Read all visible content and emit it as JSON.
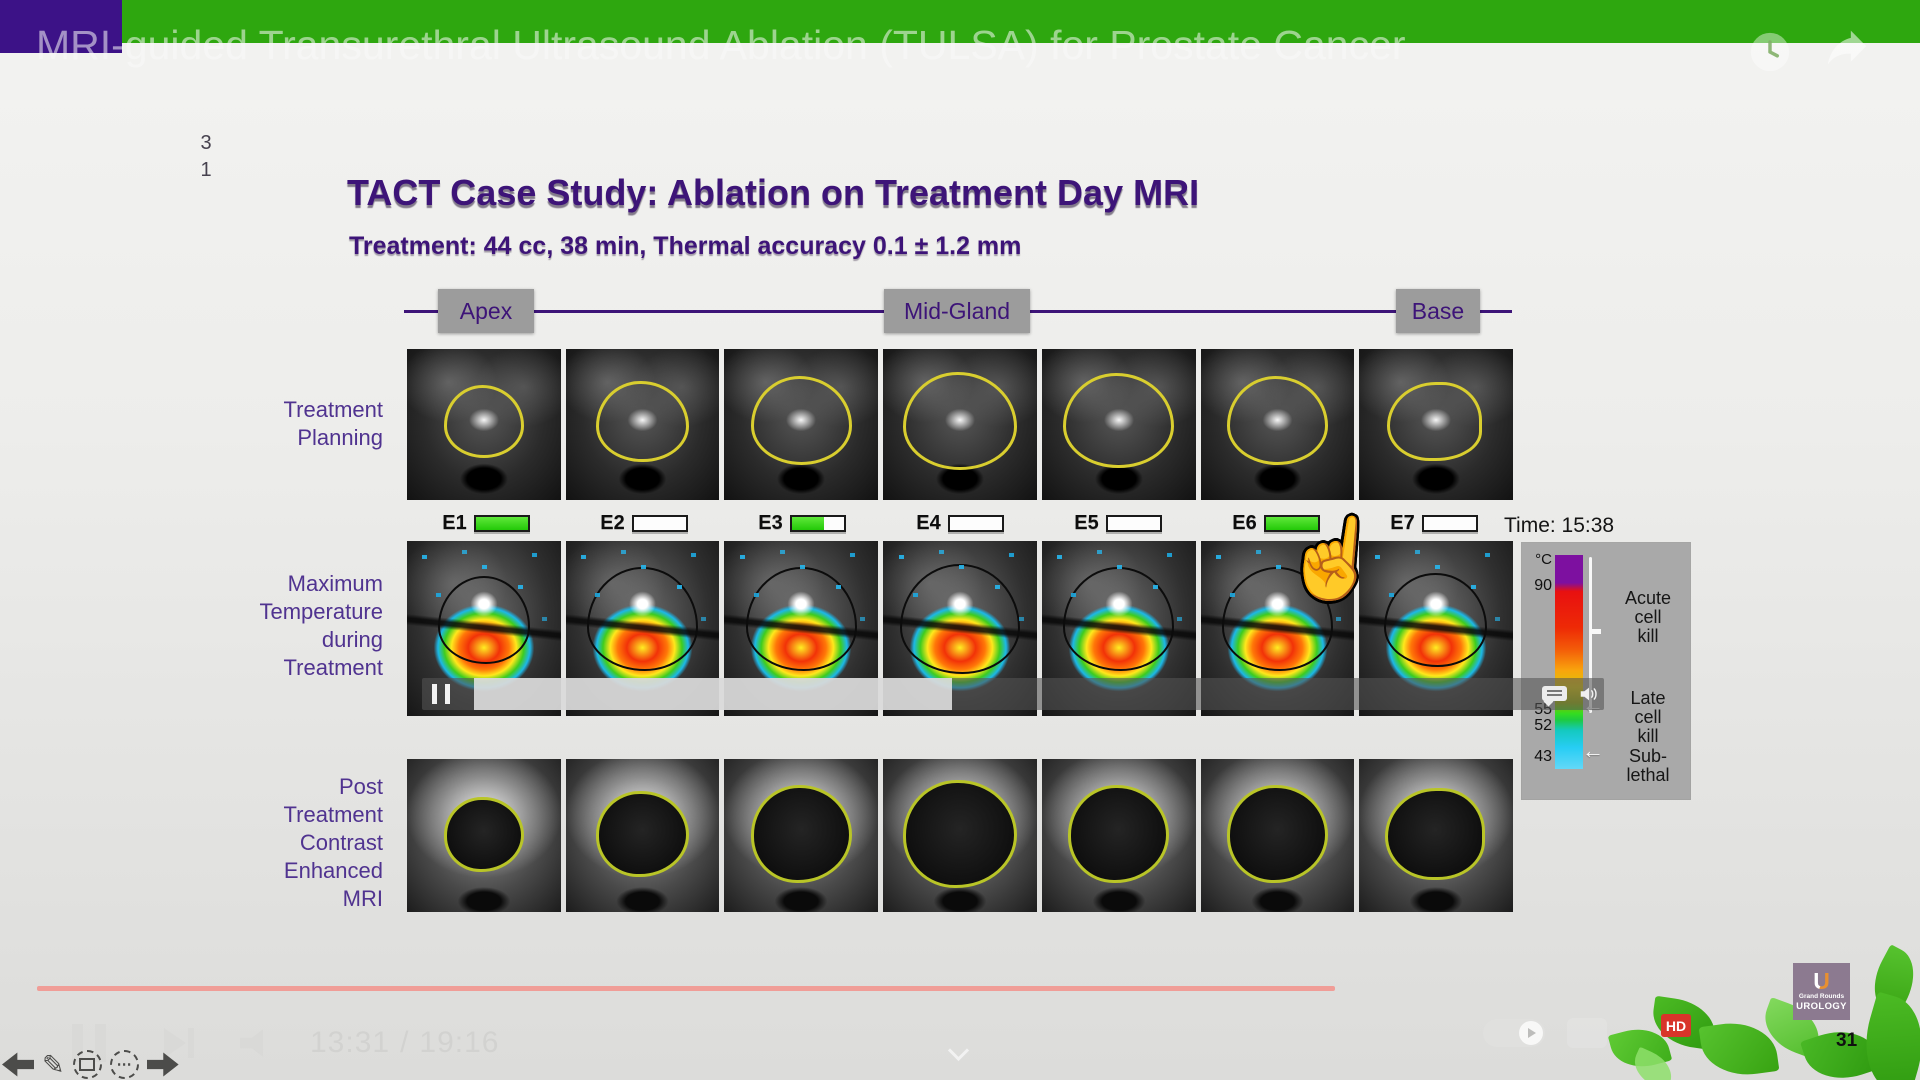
{
  "player": {
    "video_title": "MRI-guided Transurethral Ultrasound Ablation (TULSA) for Prostate Cancer",
    "controls": {
      "current_time": "13:31",
      "separator": "/",
      "duration": "19:16"
    },
    "hd_badge": "HD",
    "page_number": "31"
  },
  "slide": {
    "corner_numbers": [
      "3",
      "1"
    ],
    "title": "TACT Case Study: Ablation on Treatment Day MRI",
    "subtitle": "Treatment: 44 cc, 38 min, Thermal accuracy 0.1 ± 1.2 mm",
    "sections": [
      "Apex",
      "Mid-Gland",
      "Base"
    ],
    "row1_label_lines": [
      "Treatment",
      "Planning"
    ],
    "row2_label_lines": [
      "Maximum",
      "Temperature",
      "during",
      "Treatment"
    ],
    "row3_label_lines": [
      "Post",
      "Treatment",
      "Contrast",
      "Enhanced",
      "MRI"
    ],
    "elements": [
      {
        "label": "E1",
        "progress": 100
      },
      {
        "label": "E2",
        "progress": 0
      },
      {
        "label": "E3",
        "progress": 62
      },
      {
        "label": "E4",
        "progress": 0
      },
      {
        "label": "E5",
        "progress": 0
      },
      {
        "label": "E6",
        "progress": 100
      },
      {
        "label": "E7",
        "progress": 0
      }
    ],
    "time_overlay": "Time: 15:38",
    "legend": {
      "unit": "°C",
      "tick_90": "90",
      "tick_55": "55",
      "tick_52": "52",
      "tick_43": "43",
      "zone_acute_lines": [
        "Acute",
        "cell",
        "kill"
      ],
      "zone_late_lines": [
        "Late",
        "cell",
        "kill"
      ],
      "zone_sub_lines": [
        "Sub-",
        "lethal"
      ]
    }
  },
  "logo": {
    "letter": "U",
    "line1": "Grand Rounds",
    "line2": "UROLOGY"
  },
  "colors": {
    "top_bar_green": "#2ea70f",
    "brand_purple": "#3c1287",
    "slide_purple": "#3d1478",
    "element_green": "#23c908",
    "seek_pink": "#f09d97",
    "hd_red": "#d8342a"
  }
}
